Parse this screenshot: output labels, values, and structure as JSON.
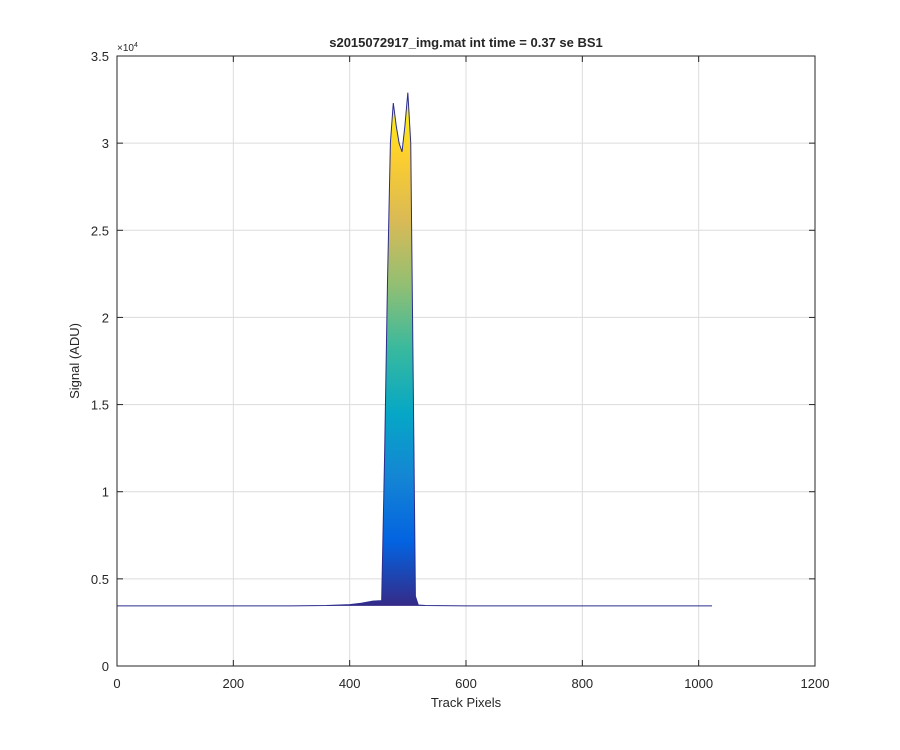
{
  "chart_data": {
    "type": "area",
    "title": "s2015072917_img.mat int time = 0.37 se   BS1",
    "xlabel": "Track Pixels",
    "ylabel": "Signal (ADU)",
    "y_exponent_label": "×10",
    "y_exponent_power": "4",
    "xlim": [
      0,
      1200
    ],
    "ylim": [
      0,
      3.5
    ],
    "x_scale_factor": 1,
    "y_scale_note": "values in units of 1e4 ADU",
    "xticks": [
      0,
      200,
      400,
      600,
      800,
      1000,
      1200
    ],
    "xtick_labels": [
      "0",
      "200",
      "400",
      "600",
      "800",
      "1000",
      "1200"
    ],
    "yticks": [
      0,
      0.5,
      1,
      1.5,
      2,
      2.5,
      3,
      3.5
    ],
    "ytick_labels": [
      "0",
      "0.5",
      "1",
      "1.5",
      "2",
      "2.5",
      "3",
      "3.5"
    ],
    "grid": true,
    "colormap": [
      "#352a87",
      "#0363e1",
      "#1485d4",
      "#06a7c6",
      "#38b99e",
      "#92bf73",
      "#d9ba56",
      "#fcce2e",
      "#f9fb0e"
    ],
    "baseline_color": "#2a2d8f",
    "series": [
      {
        "x": [
          0,
          100,
          200,
          300,
          360,
          400,
          420,
          440,
          455,
          460,
          465,
          470,
          475,
          480,
          485,
          490,
          495,
          500,
          505,
          510,
          513,
          518,
          530,
          600,
          700,
          800,
          900,
          1000,
          1023
        ],
        "y": [
          0.345,
          0.345,
          0.345,
          0.345,
          0.347,
          0.352,
          0.36,
          0.372,
          0.375,
          1.2,
          2.2,
          3.0,
          3.23,
          3.1,
          3.0,
          2.95,
          3.1,
          3.29,
          3.0,
          1.4,
          0.4,
          0.35,
          0.347,
          0.345,
          0.345,
          0.345,
          0.345,
          0.345,
          0.345
        ]
      }
    ]
  }
}
